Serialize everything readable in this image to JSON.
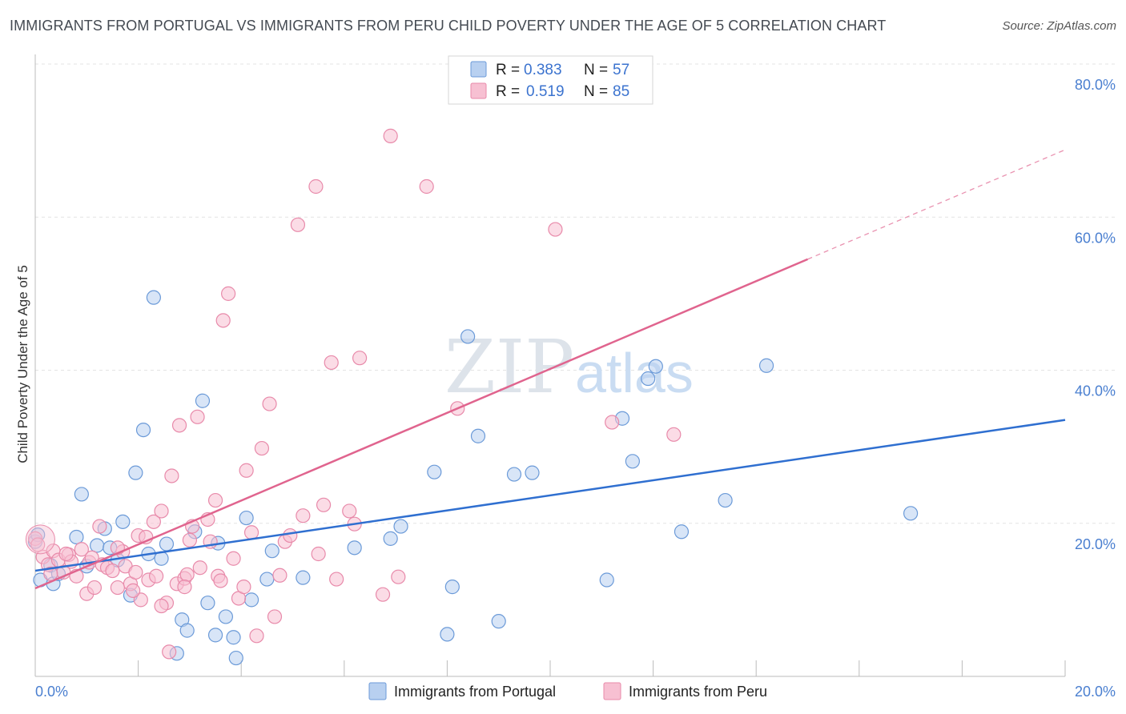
{
  "title": "IMMIGRANTS FROM PORTUGAL VS IMMIGRANTS FROM PERU CHILD POVERTY UNDER THE AGE OF 5 CORRELATION CHART",
  "source": "Source: ZipAtlas.com",
  "watermark": {
    "zip": "ZIP",
    "atlas": "atlas"
  },
  "colors": {
    "portugal_fill": "#b8d0f0",
    "portugal_stroke": "#6b9ad8",
    "portugal_line": "#2f6fd0",
    "peru_fill": "#f7c0d2",
    "peru_stroke": "#e88aaa",
    "peru_line": "#e0648e",
    "axis_label": "#4a7fd0"
  },
  "legend": {
    "rows": [
      {
        "r_label": "R =",
        "r_value": "0.383",
        "n_label": "N =",
        "n_value": "57"
      },
      {
        "r_label": "R =",
        "r_value": "0.519",
        "n_label": "N =",
        "n_value": "85"
      }
    ]
  },
  "chart_data": {
    "type": "scatter",
    "title": "IMMIGRANTS FROM PORTUGAL VS IMMIGRANTS FROM PERU CHILD POVERTY UNDER THE AGE OF 5 CORRELATION CHART",
    "xlabel": "",
    "ylabel": "Child Poverty Under the Age of 5",
    "xlim": [
      0,
      20
    ],
    "ylim": [
      0,
      80
    ],
    "x_tick_labels": [
      "0.0%",
      "20.0%"
    ],
    "y_tick_labels": [
      "20.0%",
      "40.0%",
      "60.0%",
      "80.0%"
    ],
    "y_ticks": [
      20,
      40,
      60,
      80
    ],
    "grid": true,
    "legend_position": "top-center",
    "series": [
      {
        "name": "Immigrants from Portugal",
        "r": 0.383,
        "n": 57,
        "trend": {
          "x": [
            0,
            20
          ],
          "y": [
            13.8,
            33.5
          ],
          "style": "solid"
        },
        "points": [
          [
            0.0,
            17.6
          ],
          [
            0.1,
            12.6
          ],
          [
            0.3,
            14.5
          ],
          [
            0.35,
            12.1
          ],
          [
            0.45,
            13.4
          ],
          [
            0.8,
            18.2
          ],
          [
            0.9,
            23.8
          ],
          [
            1.0,
            14.4
          ],
          [
            1.2,
            17.1
          ],
          [
            1.35,
            19.3
          ],
          [
            1.45,
            16.8
          ],
          [
            1.6,
            15.2
          ],
          [
            1.7,
            20.2
          ],
          [
            1.85,
            10.6
          ],
          [
            1.95,
            26.6
          ],
          [
            2.1,
            32.2
          ],
          [
            2.2,
            16.0
          ],
          [
            2.3,
            49.5
          ],
          [
            2.45,
            15.4
          ],
          [
            2.55,
            17.3
          ],
          [
            2.75,
            3.0
          ],
          [
            2.85,
            7.4
          ],
          [
            2.95,
            6.0
          ],
          [
            3.1,
            18.9
          ],
          [
            3.25,
            36.0
          ],
          [
            3.35,
            9.6
          ],
          [
            3.5,
            5.4
          ],
          [
            3.55,
            17.4
          ],
          [
            3.7,
            7.8
          ],
          [
            3.85,
            5.1
          ],
          [
            3.9,
            2.4
          ],
          [
            4.1,
            20.7
          ],
          [
            4.2,
            10.0
          ],
          [
            4.5,
            12.7
          ],
          [
            4.6,
            16.4
          ],
          [
            5.2,
            12.9
          ],
          [
            6.2,
            16.8
          ],
          [
            6.9,
            18.0
          ],
          [
            7.1,
            19.6
          ],
          [
            7.75,
            26.7
          ],
          [
            8.0,
            5.5
          ],
          [
            8.1,
            11.7
          ],
          [
            8.4,
            44.4
          ],
          [
            8.6,
            31.4
          ],
          [
            9.0,
            7.2
          ],
          [
            9.3,
            26.4
          ],
          [
            9.65,
            26.6
          ],
          [
            11.1,
            12.6
          ],
          [
            11.4,
            33.7
          ],
          [
            11.6,
            28.1
          ],
          [
            11.9,
            38.9
          ],
          [
            12.05,
            40.5
          ],
          [
            12.55,
            18.9
          ],
          [
            13.4,
            23.0
          ],
          [
            14.2,
            40.6
          ],
          [
            17.0,
            21.3
          ],
          [
            0.05,
            18.5
          ]
        ]
      },
      {
        "name": "Immigrants from Peru",
        "r": 0.519,
        "n": 85,
        "trend": {
          "x": [
            0,
            15
          ],
          "y": [
            11.5,
            54.5
          ],
          "style": "solid",
          "extension_x": [
            15,
            20
          ],
          "extension_y": [
            54.5,
            68.8
          ]
        },
        "points": [
          [
            0.0,
            18.0
          ],
          [
            0.05,
            17.2
          ],
          [
            0.15,
            15.6
          ],
          [
            0.25,
            14.6
          ],
          [
            0.35,
            16.4
          ],
          [
            0.45,
            15.2
          ],
          [
            0.55,
            13.6
          ],
          [
            0.65,
            15.9
          ],
          [
            0.7,
            15.0
          ],
          [
            0.8,
            13.1
          ],
          [
            0.9,
            16.6
          ],
          [
            1.0,
            10.8
          ],
          [
            1.05,
            14.9
          ],
          [
            1.15,
            11.6
          ],
          [
            1.25,
            19.6
          ],
          [
            1.3,
            14.6
          ],
          [
            1.4,
            14.2
          ],
          [
            1.5,
            13.8
          ],
          [
            1.6,
            11.6
          ],
          [
            1.7,
            16.3
          ],
          [
            1.75,
            14.4
          ],
          [
            1.85,
            12.1
          ],
          [
            1.95,
            13.6
          ],
          [
            2.0,
            18.4
          ],
          [
            2.05,
            10.0
          ],
          [
            2.15,
            18.2
          ],
          [
            2.2,
            12.6
          ],
          [
            2.3,
            20.2
          ],
          [
            2.35,
            13.1
          ],
          [
            2.45,
            21.6
          ],
          [
            2.55,
            9.6
          ],
          [
            2.6,
            3.2
          ],
          [
            2.65,
            26.2
          ],
          [
            2.75,
            12.1
          ],
          [
            2.8,
            32.8
          ],
          [
            2.9,
            12.8
          ],
          [
            2.95,
            13.3
          ],
          [
            3.0,
            17.8
          ],
          [
            3.05,
            19.6
          ],
          [
            3.15,
            33.9
          ],
          [
            3.2,
            14.2
          ],
          [
            3.35,
            20.5
          ],
          [
            3.4,
            17.6
          ],
          [
            3.5,
            23.0
          ],
          [
            3.55,
            13.1
          ],
          [
            3.65,
            46.5
          ],
          [
            3.75,
            50.0
          ],
          [
            3.85,
            15.4
          ],
          [
            3.95,
            10.2
          ],
          [
            4.05,
            11.7
          ],
          [
            4.1,
            26.9
          ],
          [
            4.2,
            18.8
          ],
          [
            4.3,
            5.3
          ],
          [
            4.4,
            29.8
          ],
          [
            4.55,
            35.6
          ],
          [
            4.65,
            7.8
          ],
          [
            4.75,
            13.2
          ],
          [
            4.85,
            17.6
          ],
          [
            4.95,
            18.4
          ],
          [
            5.1,
            59.0
          ],
          [
            5.2,
            21.0
          ],
          [
            5.45,
            64.0
          ],
          [
            5.5,
            16.0
          ],
          [
            5.6,
            22.4
          ],
          [
            5.75,
            41.0
          ],
          [
            5.85,
            12.7
          ],
          [
            6.1,
            21.6
          ],
          [
            6.2,
            19.9
          ],
          [
            6.3,
            41.6
          ],
          [
            6.75,
            10.7
          ],
          [
            6.9,
            70.6
          ],
          [
            7.05,
            13.0
          ],
          [
            7.6,
            64.0
          ],
          [
            8.2,
            35.0
          ],
          [
            10.1,
            58.4
          ],
          [
            11.2,
            33.2
          ],
          [
            12.4,
            31.6
          ],
          [
            1.6,
            16.8
          ],
          [
            0.3,
            13.4
          ],
          [
            2.45,
            9.2
          ],
          [
            3.6,
            12.5
          ],
          [
            1.1,
            15.5
          ],
          [
            0.6,
            16.0
          ],
          [
            2.9,
            11.7
          ],
          [
            1.9,
            11.2
          ]
        ]
      }
    ]
  },
  "bottom_legend": [
    {
      "label": "Immigrants from Portugal"
    },
    {
      "label": "Immigrants from Peru"
    }
  ]
}
